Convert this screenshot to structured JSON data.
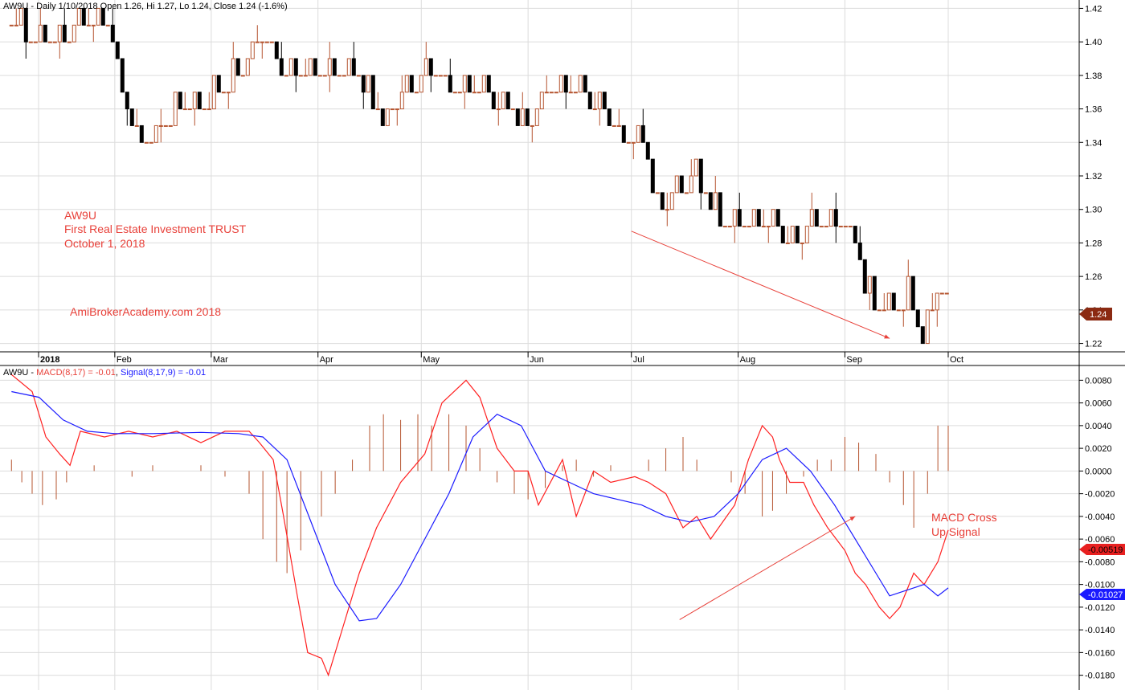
{
  "colors": {
    "background": "#ffffff",
    "grid": "#dcdcdc",
    "up_bar": "#b5542f",
    "down_bar": "#000000",
    "macd_line": "#ff2020",
    "signal_line": "#1a1aff",
    "histogram": "#b5542f",
    "annotation": "#e8413a",
    "axis_text": "#000000"
  },
  "price_header": "AW9U - Daily 1/10/2018 Open 1.26, Hi 1.27, Lo 1.24, Close 1.24 (-1.6%)",
  "price_annotation": [
    "AW9U",
    "First Real Estate Investment TRUST",
    "October 1, 2018"
  ],
  "watermark": "AmiBrokerAcademy.com  2018",
  "macd_header": {
    "prefix": "AW9U - ",
    "macd": "MACD(8,17) = -0.01",
    "signal": "Signal(8,17,9) = -0.01"
  },
  "macd_annotation": [
    "MACD Cross",
    "Up Signal"
  ],
  "last_price_label": "1.24",
  "macd_value_label": "-0.00519",
  "signal_value_label": "-0.01027",
  "chart_data": [
    {
      "type": "ohlc",
      "title": "AW9U - Daily 1/10/2018 Open 1.26, Hi 1.27, Lo 1.24, Close 1.24 (-1.6%)",
      "x_tick_labels": [
        "2018",
        "Feb",
        "Mar",
        "Apr",
        "May",
        "Jun",
        "Jul",
        "Aug",
        "Sep",
        "Oct"
      ],
      "y_tick_labels": [
        "1.42",
        "1.40",
        "1.38",
        "1.36",
        "1.34",
        "1.32",
        "1.30",
        "1.28",
        "1.26",
        "1.24",
        "1.22"
      ],
      "ylim": [
        1.215,
        1.425
      ],
      "last_close": 1.24,
      "trend_arrow": {
        "from": [
          "2018-07-01",
          1.287
        ],
        "to": [
          "2018-09-14",
          1.223
        ]
      },
      "closes_path": [
        [
          "2018-01-02",
          1.41
        ],
        [
          "2018-01-10",
          1.4
        ],
        [
          "2018-01-17",
          1.4
        ],
        [
          "2018-01-23",
          1.41
        ],
        [
          "2018-01-26",
          1.41
        ],
        [
          "2018-01-30",
          1.41
        ],
        [
          "2018-02-01",
          1.39
        ],
        [
          "2018-02-05",
          1.36
        ],
        [
          "2018-02-08",
          1.34
        ],
        [
          "2018-02-12",
          1.34
        ],
        [
          "2018-02-19",
          1.36
        ],
        [
          "2018-02-26",
          1.36
        ],
        [
          "2018-03-05",
          1.37
        ],
        [
          "2018-03-12",
          1.39
        ],
        [
          "2018-03-16",
          1.4
        ],
        [
          "2018-03-23",
          1.38
        ],
        [
          "2018-03-30",
          1.38
        ],
        [
          "2018-04-06",
          1.38
        ],
        [
          "2018-04-13",
          1.38
        ],
        [
          "2018-04-20",
          1.35
        ],
        [
          "2018-04-27",
          1.37
        ],
        [
          "2018-05-04",
          1.38
        ],
        [
          "2018-05-11",
          1.37
        ],
        [
          "2018-05-18",
          1.37
        ],
        [
          "2018-05-25",
          1.36
        ],
        [
          "2018-06-01",
          1.35
        ],
        [
          "2018-06-08",
          1.37
        ],
        [
          "2018-06-15",
          1.37
        ],
        [
          "2018-06-22",
          1.36
        ],
        [
          "2018-06-29",
          1.34
        ],
        [
          "2018-07-04",
          1.34
        ],
        [
          "2018-07-09",
          1.3
        ],
        [
          "2018-07-16",
          1.31
        ],
        [
          "2018-07-20",
          1.32
        ],
        [
          "2018-07-27",
          1.29
        ],
        [
          "2018-08-03",
          1.29
        ],
        [
          "2018-08-10",
          1.29
        ],
        [
          "2018-08-17",
          1.28
        ],
        [
          "2018-08-24",
          1.29
        ],
        [
          "2018-08-31",
          1.29
        ],
        [
          "2018-09-04",
          1.28
        ],
        [
          "2018-09-07",
          1.25
        ],
        [
          "2018-09-12",
          1.24
        ],
        [
          "2018-09-17",
          1.24
        ],
        [
          "2018-09-20",
          1.25
        ],
        [
          "2018-09-24",
          1.22
        ],
        [
          "2018-09-28",
          1.25
        ],
        [
          "2018-10-01",
          1.24
        ]
      ]
    },
    {
      "type": "line",
      "title": "AW9U - MACD(8,17) = -0.01, Signal(8,17,9) = -0.01",
      "x_tick_labels": [
        "2018",
        "Feb",
        "Mar",
        "Apr",
        "May",
        "Jun",
        "Jul",
        "Aug",
        "Sep",
        "Oct"
      ],
      "y_tick_labels": [
        "0.0080",
        "0.0060",
        "0.0040",
        "0.0020",
        "0.0000",
        "-0.0020",
        "-0.0040",
        "-0.0060",
        "-0.0080",
        "-0.0100",
        "-0.0120",
        "-0.0140",
        "-0.0160",
        "-0.0180"
      ],
      "ylim": [
        -0.0193,
        0.0093
      ],
      "trend_arrow": {
        "from": [
          "2018-07-15",
          -0.0131
        ],
        "to": [
          "2018-09-04",
          -0.004
        ]
      },
      "series": [
        {
          "name": "MACD(8,17)",
          "points": [
            [
              "2018-01-02",
              0.0085
            ],
            [
              "2018-01-08",
              0.007
            ],
            [
              "2018-01-12",
              0.003
            ],
            [
              "2018-01-16",
              0.0015
            ],
            [
              "2018-01-19",
              0.0005
            ],
            [
              "2018-01-22",
              0.0035
            ],
            [
              "2018-01-29",
              0.003
            ],
            [
              "2018-02-05",
              0.0035
            ],
            [
              "2018-02-12",
              0.003
            ],
            [
              "2018-02-19",
              0.0035
            ],
            [
              "2018-02-26",
              0.0025
            ],
            [
              "2018-03-05",
              0.0035
            ],
            [
              "2018-03-12",
              0.0035
            ],
            [
              "2018-03-15",
              0.0025
            ],
            [
              "2018-03-19",
              0.001
            ],
            [
              "2018-03-22",
              -0.004
            ],
            [
              "2018-03-26",
              -0.011
            ],
            [
              "2018-03-29",
              -0.016
            ],
            [
              "2018-04-02",
              -0.0165
            ],
            [
              "2018-04-04",
              -0.018
            ],
            [
              "2018-04-09",
              -0.013
            ],
            [
              "2018-04-13",
              -0.009
            ],
            [
              "2018-04-18",
              -0.005
            ],
            [
              "2018-04-25",
              -0.001
            ],
            [
              "2018-05-02",
              0.0015
            ],
            [
              "2018-05-07",
              0.006
            ],
            [
              "2018-05-14",
              0.008
            ],
            [
              "2018-05-18",
              0.0065
            ],
            [
              "2018-05-23",
              0.002
            ],
            [
              "2018-05-28",
              0.0
            ],
            [
              "2018-06-01",
              0.0
            ],
            [
              "2018-06-04",
              -0.003
            ],
            [
              "2018-06-11",
              0.001
            ],
            [
              "2018-06-15",
              -0.004
            ],
            [
              "2018-06-20",
              0.0
            ],
            [
              "2018-06-25",
              -0.001
            ],
            [
              "2018-07-02",
              -0.0005
            ],
            [
              "2018-07-06",
              -0.001
            ],
            [
              "2018-07-11",
              -0.002
            ],
            [
              "2018-07-16",
              -0.005
            ],
            [
              "2018-07-20",
              -0.004
            ],
            [
              "2018-07-24",
              -0.006
            ],
            [
              "2018-07-31",
              -0.003
            ],
            [
              "2018-08-04",
              0.001
            ],
            [
              "2018-08-08",
              0.004
            ],
            [
              "2018-08-11",
              0.003
            ],
            [
              "2018-08-13",
              0.001
            ],
            [
              "2018-08-16",
              -0.001
            ],
            [
              "2018-08-20",
              -0.001
            ],
            [
              "2018-08-23",
              -0.003
            ],
            [
              "2018-08-27",
              -0.005
            ],
            [
              "2018-09-01",
              -0.007
            ],
            [
              "2018-09-04",
              -0.009
            ],
            [
              "2018-09-07",
              -0.01
            ],
            [
              "2018-09-11",
              -0.012
            ],
            [
              "2018-09-14",
              -0.013
            ],
            [
              "2018-09-17",
              -0.012
            ],
            [
              "2018-09-21",
              -0.009
            ],
            [
              "2018-09-24",
              -0.01
            ],
            [
              "2018-09-28",
              -0.008
            ],
            [
              "2018-10-01",
              -0.0052
            ]
          ]
        },
        {
          "name": "Signal(8,17,9)",
          "points": [
            [
              "2018-01-02",
              0.007
            ],
            [
              "2018-01-10",
              0.0065
            ],
            [
              "2018-01-17",
              0.0045
            ],
            [
              "2018-01-24",
              0.0035
            ],
            [
              "2018-02-01",
              0.0033
            ],
            [
              "2018-02-12",
              0.0033
            ],
            [
              "2018-02-26",
              0.0034
            ],
            [
              "2018-03-09",
              0.0033
            ],
            [
              "2018-03-16",
              0.003
            ],
            [
              "2018-03-23",
              0.001
            ],
            [
              "2018-03-30",
              -0.0045
            ],
            [
              "2018-04-06",
              -0.01
            ],
            [
              "2018-04-13",
              -0.0132
            ],
            [
              "2018-04-18",
              -0.013
            ],
            [
              "2018-04-25",
              -0.01
            ],
            [
              "2018-05-02",
              -0.006
            ],
            [
              "2018-05-09",
              -0.002
            ],
            [
              "2018-05-16",
              0.003
            ],
            [
              "2018-05-23",
              0.005
            ],
            [
              "2018-05-30",
              0.004
            ],
            [
              "2018-06-06",
              0.0
            ],
            [
              "2018-06-13",
              -0.001
            ],
            [
              "2018-06-20",
              -0.002
            ],
            [
              "2018-06-27",
              -0.0025
            ],
            [
              "2018-07-04",
              -0.003
            ],
            [
              "2018-07-11",
              -0.004
            ],
            [
              "2018-07-18",
              -0.0045
            ],
            [
              "2018-07-25",
              -0.004
            ],
            [
              "2018-08-01",
              -0.002
            ],
            [
              "2018-08-08",
              0.001
            ],
            [
              "2018-08-15",
              0.002
            ],
            [
              "2018-08-22",
              0.0
            ],
            [
              "2018-08-29",
              -0.003
            ],
            [
              "2018-09-05",
              -0.0065
            ],
            [
              "2018-09-10",
              -0.009
            ],
            [
              "2018-09-14",
              -0.011
            ],
            [
              "2018-09-19",
              -0.0105
            ],
            [
              "2018-09-24",
              -0.01
            ],
            [
              "2018-09-28",
              -0.011
            ],
            [
              "2018-10-01",
              -0.0103
            ]
          ]
        }
      ],
      "histogram": [
        [
          "2018-01-02",
          0.001
        ],
        [
          "2018-01-05",
          -0.001
        ],
        [
          "2018-01-08",
          -0.002
        ],
        [
          "2018-01-11",
          -0.003
        ],
        [
          "2018-01-15",
          -0.0025
        ],
        [
          "2018-01-18",
          -0.001
        ],
        [
          "2018-01-22",
          0.0
        ],
        [
          "2018-01-26",
          0.0005
        ],
        [
          "2018-02-01",
          0.0
        ],
        [
          "2018-02-06",
          -0.0005
        ],
        [
          "2018-02-12",
          0.0005
        ],
        [
          "2018-02-19",
          0.0
        ],
        [
          "2018-02-26",
          0.0005
        ],
        [
          "2018-03-05",
          -0.0005
        ],
        [
          "2018-03-12",
          -0.002
        ],
        [
          "2018-03-16",
          -0.006
        ],
        [
          "2018-03-20",
          -0.008
        ],
        [
          "2018-03-23",
          -0.009
        ],
        [
          "2018-03-27",
          -0.007
        ],
        [
          "2018-04-02",
          -0.004
        ],
        [
          "2018-04-06",
          -0.002
        ],
        [
          "2018-04-11",
          0.001
        ],
        [
          "2018-04-16",
          0.004
        ],
        [
          "2018-04-20",
          0.005
        ],
        [
          "2018-04-25",
          0.0045
        ],
        [
          "2018-04-30",
          0.005
        ],
        [
          "2018-05-04",
          0.004
        ],
        [
          "2018-05-09",
          0.005
        ],
        [
          "2018-05-14",
          0.004
        ],
        [
          "2018-05-18",
          0.002
        ],
        [
          "2018-05-23",
          -0.001
        ],
        [
          "2018-05-28",
          -0.002
        ],
        [
          "2018-06-01",
          -0.0025
        ],
        [
          "2018-06-06",
          -0.0015
        ],
        [
          "2018-06-11",
          0.0005
        ],
        [
          "2018-06-15",
          0.001
        ],
        [
          "2018-06-20",
          -0.0005
        ],
        [
          "2018-06-25",
          0.0005
        ],
        [
          "2018-07-02",
          0.0
        ],
        [
          "2018-07-06",
          0.001
        ],
        [
          "2018-07-11",
          0.002
        ],
        [
          "2018-07-16",
          0.003
        ],
        [
          "2018-07-20",
          0.001
        ],
        [
          "2018-07-25",
          0.0
        ],
        [
          "2018-07-30",
          -0.001
        ],
        [
          "2018-08-03",
          -0.002
        ],
        [
          "2018-08-08",
          -0.004
        ],
        [
          "2018-08-11",
          -0.0035
        ],
        [
          "2018-08-15",
          -0.002
        ],
        [
          "2018-08-20",
          -0.0005
        ],
        [
          "2018-08-24",
          0.001
        ],
        [
          "2018-08-28",
          0.001
        ],
        [
          "2018-09-01",
          0.003
        ],
        [
          "2018-09-05",
          0.0025
        ],
        [
          "2018-09-10",
          0.0015
        ],
        [
          "2018-09-14",
          -0.001
        ],
        [
          "2018-09-18",
          -0.003
        ],
        [
          "2018-09-21",
          -0.005
        ],
        [
          "2018-09-25",
          -0.002
        ],
        [
          "2018-09-28",
          0.004
        ],
        [
          "2018-10-01",
          0.004
        ]
      ]
    }
  ]
}
